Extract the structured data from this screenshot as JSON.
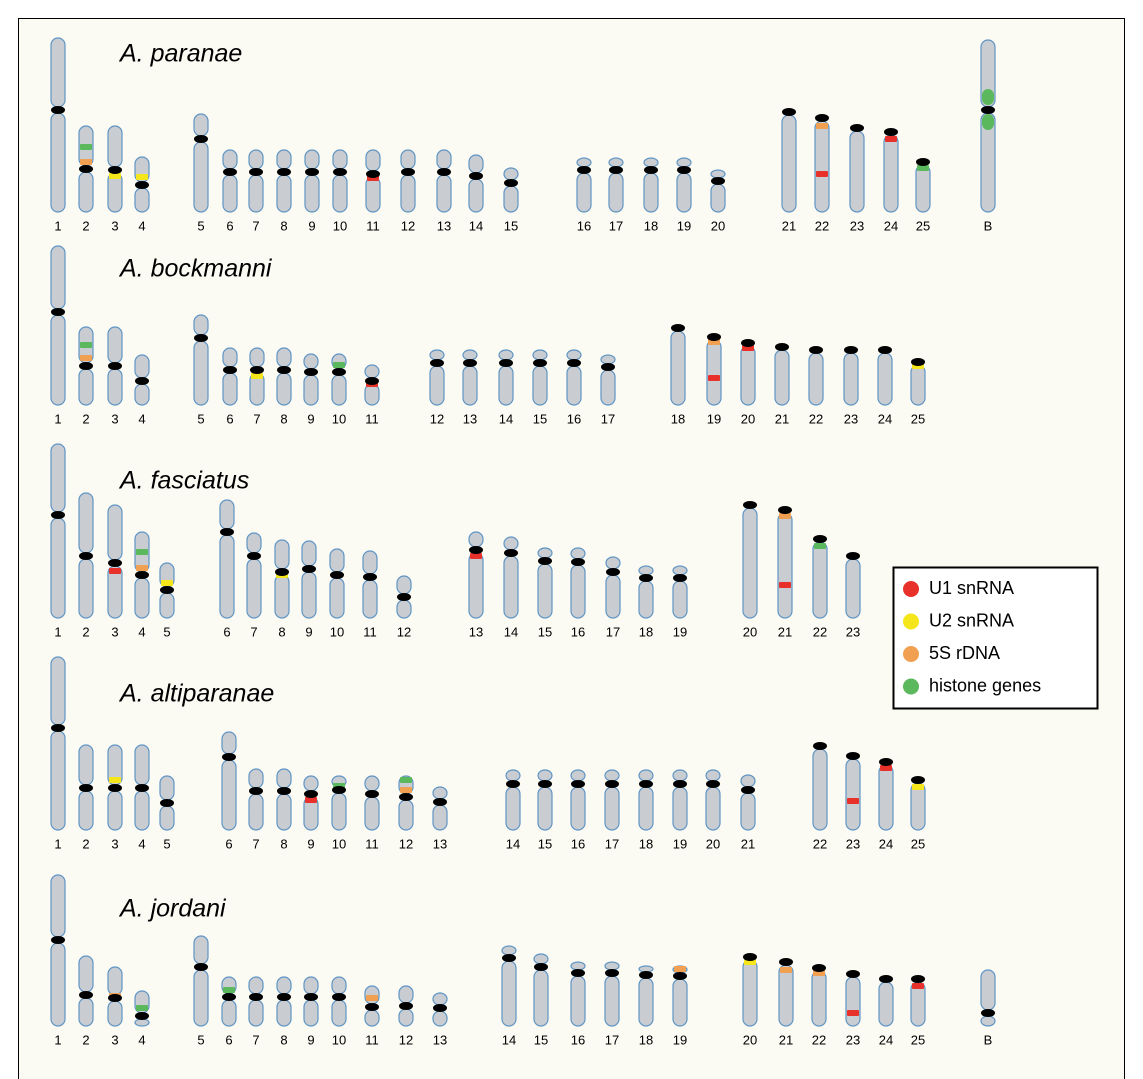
{
  "rows": [
    {
      "species": "A. paranae",
      "chromosomes": [
        "1",
        "2",
        "3",
        "4",
        "5",
        "6",
        "7",
        "8",
        "9",
        "10",
        "11",
        "12",
        "13",
        "14",
        "15",
        "16",
        "17",
        "18",
        "19",
        "20",
        "21",
        "22",
        "23",
        "24",
        "25",
        "B"
      ]
    },
    {
      "species": "A. bockmanni",
      "chromosomes": [
        "1",
        "2",
        "3",
        "4",
        "5",
        "6",
        "7",
        "8",
        "9",
        "10",
        "11",
        "12",
        "13",
        "14",
        "15",
        "16",
        "17",
        "18",
        "19",
        "20",
        "21",
        "22",
        "23",
        "24",
        "25"
      ]
    },
    {
      "species": "A. fasciatus",
      "chromosomes": [
        "1",
        "2",
        "3",
        "4",
        "5",
        "6",
        "7",
        "8",
        "9",
        "10",
        "11",
        "12",
        "13",
        "14",
        "15",
        "16",
        "17",
        "18",
        "19",
        "20",
        "21",
        "22",
        "23"
      ]
    },
    {
      "species": "A. altiparanae",
      "chromosomes": [
        "1",
        "2",
        "3",
        "4",
        "5",
        "6",
        "7",
        "8",
        "9",
        "10",
        "11",
        "12",
        "13",
        "14",
        "15",
        "16",
        "17",
        "18",
        "19",
        "20",
        "21",
        "22",
        "23",
        "24",
        "25"
      ]
    },
    {
      "species": "A. jordani",
      "chromosomes": [
        "1",
        "2",
        "3",
        "4",
        "5",
        "6",
        "7",
        "8",
        "9",
        "10",
        "11",
        "12",
        "13",
        "14",
        "15",
        "16",
        "17",
        "18",
        "19",
        "20",
        "21",
        "22",
        "23",
        "24",
        "25",
        "B"
      ]
    }
  ],
  "legend": {
    "items": [
      {
        "label": "U1 snRNA",
        "color": "#e8312a"
      },
      {
        "label": "U2 snRNA",
        "color": "#f5e61c"
      },
      {
        "label": "5S rDNA",
        "color": "#f0a050"
      },
      {
        "label": "histone genes",
        "color": "#5cb85c"
      }
    ]
  }
}
